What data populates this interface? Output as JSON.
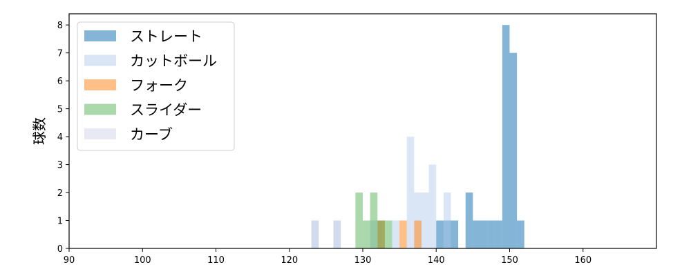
{
  "chart_data": {
    "type": "histogram",
    "xlabel": "",
    "ylabel": "球数",
    "xlim": [
      90,
      170
    ],
    "ylim": [
      0,
      8.4
    ],
    "xticks": [
      90,
      100,
      110,
      120,
      130,
      140,
      150,
      160
    ],
    "yticks": [
      0,
      1,
      2,
      3,
      4,
      5,
      6,
      7,
      8
    ],
    "bin_width": 1,
    "legend_position": "upper-left",
    "grid": false,
    "series": [
      {
        "name": "ストレート",
        "color": "#1f77b4",
        "alpha": 0.55,
        "bins": [
          {
            "x": 140,
            "count": 1
          },
          {
            "x": 141,
            "count": 1
          },
          {
            "x": 142,
            "count": 1
          },
          {
            "x": 144,
            "count": 2
          },
          {
            "x": 145,
            "count": 1
          },
          {
            "x": 146,
            "count": 1
          },
          {
            "x": 147,
            "count": 1
          },
          {
            "x": 148,
            "count": 1
          },
          {
            "x": 149,
            "count": 8
          },
          {
            "x": 150,
            "count": 7
          },
          {
            "x": 151,
            "count": 1
          }
        ]
      },
      {
        "name": "カットボール",
        "color": "#aec7e8",
        "alpha": 0.45,
        "bins": [
          {
            "x": 123,
            "count": 1
          },
          {
            "x": 126,
            "count": 1
          },
          {
            "x": 131,
            "count": 1
          },
          {
            "x": 132,
            "count": 1
          },
          {
            "x": 134,
            "count": 1
          },
          {
            "x": 136,
            "count": 4
          },
          {
            "x": 137,
            "count": 2
          },
          {
            "x": 138,
            "count": 2
          },
          {
            "x": 139,
            "count": 3
          },
          {
            "x": 141,
            "count": 2
          }
        ]
      },
      {
        "name": "フォーク",
        "color": "#ff7f0e",
        "alpha": 0.5,
        "bins": [
          {
            "x": 132,
            "count": 1
          },
          {
            "x": 135,
            "count": 1
          },
          {
            "x": 137,
            "count": 1
          }
        ]
      },
      {
        "name": "スライダー",
        "color": "#2ca02c",
        "alpha": 0.4,
        "bins": [
          {
            "x": 129,
            "count": 2
          },
          {
            "x": 130,
            "count": 1
          },
          {
            "x": 131,
            "count": 2
          },
          {
            "x": 132,
            "count": 1
          },
          {
            "x": 133,
            "count": 1
          }
        ]
      },
      {
        "name": "カーブ",
        "color": "#c5c8e0",
        "alpha": 0.4,
        "bins": [
          {
            "x": 123,
            "count": 1
          },
          {
            "x": 126,
            "count": 1
          }
        ]
      }
    ]
  }
}
